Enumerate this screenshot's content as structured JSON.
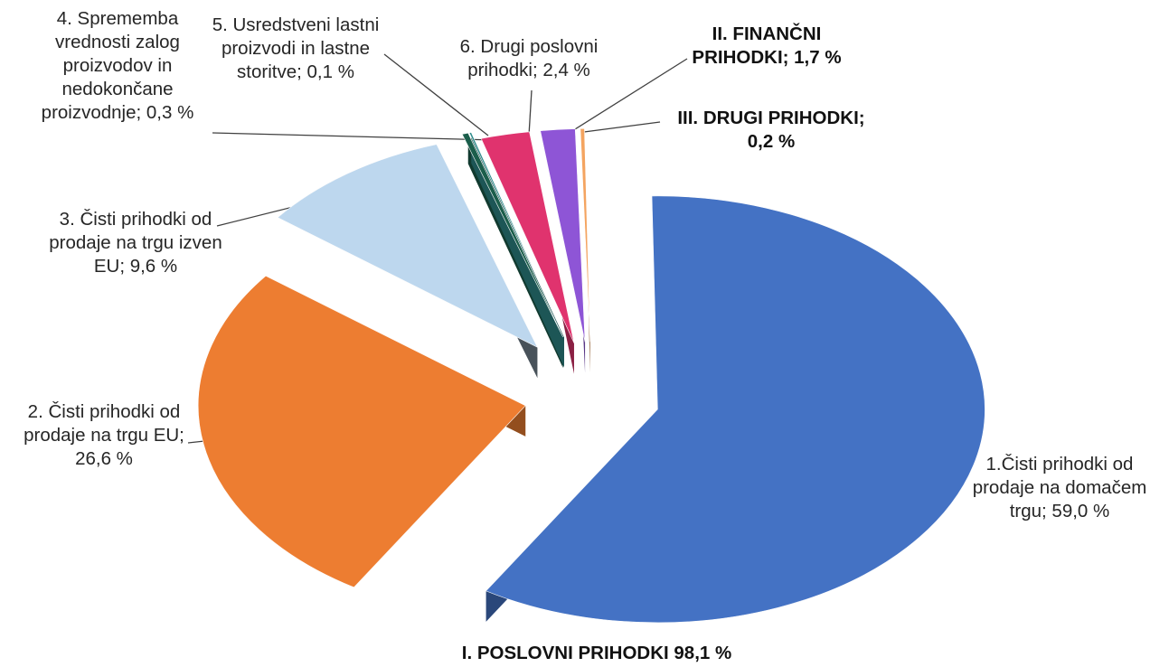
{
  "chart_data": {
    "type": "pie",
    "style": "3d-exploded",
    "title": "",
    "slices": [
      {
        "label": "1.Čisti prihodki od prodaje na domačem trgu",
        "value": 59.0,
        "value_text": "59,0 %",
        "color": "#4472C4",
        "label_lines": [
          "1.Čisti prihodki od",
          "prodaje na domačem",
          "trgu; 59,0 %"
        ]
      },
      {
        "label": "2. Čisti prihodki od prodaje na trgu EU",
        "value": 26.6,
        "value_text": "26,6 %",
        "color": "#ED7D31",
        "label_lines": [
          "2. Čisti prihodki od",
          "prodaje na trgu EU;",
          "26,6 %"
        ]
      },
      {
        "label": "3. Čisti prihodki od prodaje na trgu izven EU",
        "value": 9.6,
        "value_text": "9,6 %",
        "color": "#BDD7EE",
        "label_lines": [
          "3. Čisti prihodki od",
          "prodaje na trgu izven",
          "EU; 9,6 %"
        ]
      },
      {
        "label": "4. Sprememba vrednosti zalog proizvodov in nedokončane proizvodnje",
        "value": 0.3,
        "value_text": "0,3 %",
        "color": "#1B5E4B",
        "label_lines": [
          "4. Sprememba",
          "vrednosti zalog",
          "proizvodov in",
          "nedokončane",
          "proizvodnje; 0,3 %"
        ]
      },
      {
        "label": "5. Usredstveni lastni proizvodi in lastne storitve",
        "value": 0.1,
        "value_text": "0,1 %",
        "color": "#2E8B8B",
        "label_lines": [
          "5. Usredstveni lastni",
          "proizvodi in lastne",
          "storitve; 0,1 %"
        ]
      },
      {
        "label": "6. Drugi poslovni prihodki",
        "value": 2.4,
        "value_text": "2,4 %",
        "color": "#E0336E",
        "label_lines": [
          "6. Drugi poslovni",
          "prihodki; 2,4 %"
        ]
      },
      {
        "label": "II. FINANČNI PRIHODKI",
        "value": 1.7,
        "value_text": "1,7 %",
        "color": "#8E55D6",
        "label_lines": [
          "II. FINANČNI",
          "PRIHODKI; 1,7 %"
        ]
      },
      {
        "label": "III. DRUGI PRIHODKI",
        "value": 0.2,
        "value_text": "0,2 %",
        "color": "#F4A460",
        "label_lines": [
          "III. DRUGI PRIHODKI;",
          "0,2 %"
        ]
      }
    ],
    "group_label": "I. POSLOVNI PRIHODKI 98,1 %",
    "legend": "none",
    "grid": false
  }
}
